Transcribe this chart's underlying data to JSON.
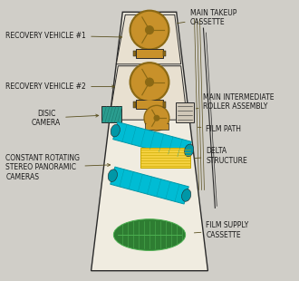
{
  "bg_color": "#e8e4d8",
  "outline_color": "#333333",
  "title": "",
  "labels": {
    "main_takeup": "MAIN TAKEUP\nCASSETTE",
    "recovery1": "RECOVERY VEHICLE #1",
    "recovery2": "RECOVERY VEHICLE #2",
    "disc_camera": "DISIC\nCAMERA",
    "constant_rotating": "CONSTANT ROTATING\nSTEREO PANORAMIC\nCAMERAS",
    "main_intermediate": "MAIN INTERMEDIATE\nROLLER ASSEMBLY",
    "film_path": "FILM PATH",
    "delta_structure": "DELTA\nSTRUCTURE",
    "film_supply": "FILM SUPPLY\nCASSETTE"
  },
  "colors": {
    "film_reel": "#c8912a",
    "film_reel_dark": "#8B6914",
    "disc_camera_teal": "#2a9d8f",
    "disc_camera_hatch": "#1a7a6e",
    "cyan_camera": "#00bcd4",
    "cyan_camera_dark": "#0097a7",
    "yellow_structure": "#f4d03f",
    "yellow_dark": "#c9a800",
    "green_cassette": "#2e7d32",
    "green_cassette_light": "#4caf50",
    "white": "#ffffff",
    "light_gray": "#d0cec8",
    "medium_gray": "#a0a090",
    "dark_gray": "#555555",
    "outline": "#2a2a2a",
    "label_line": "#5a5020"
  }
}
